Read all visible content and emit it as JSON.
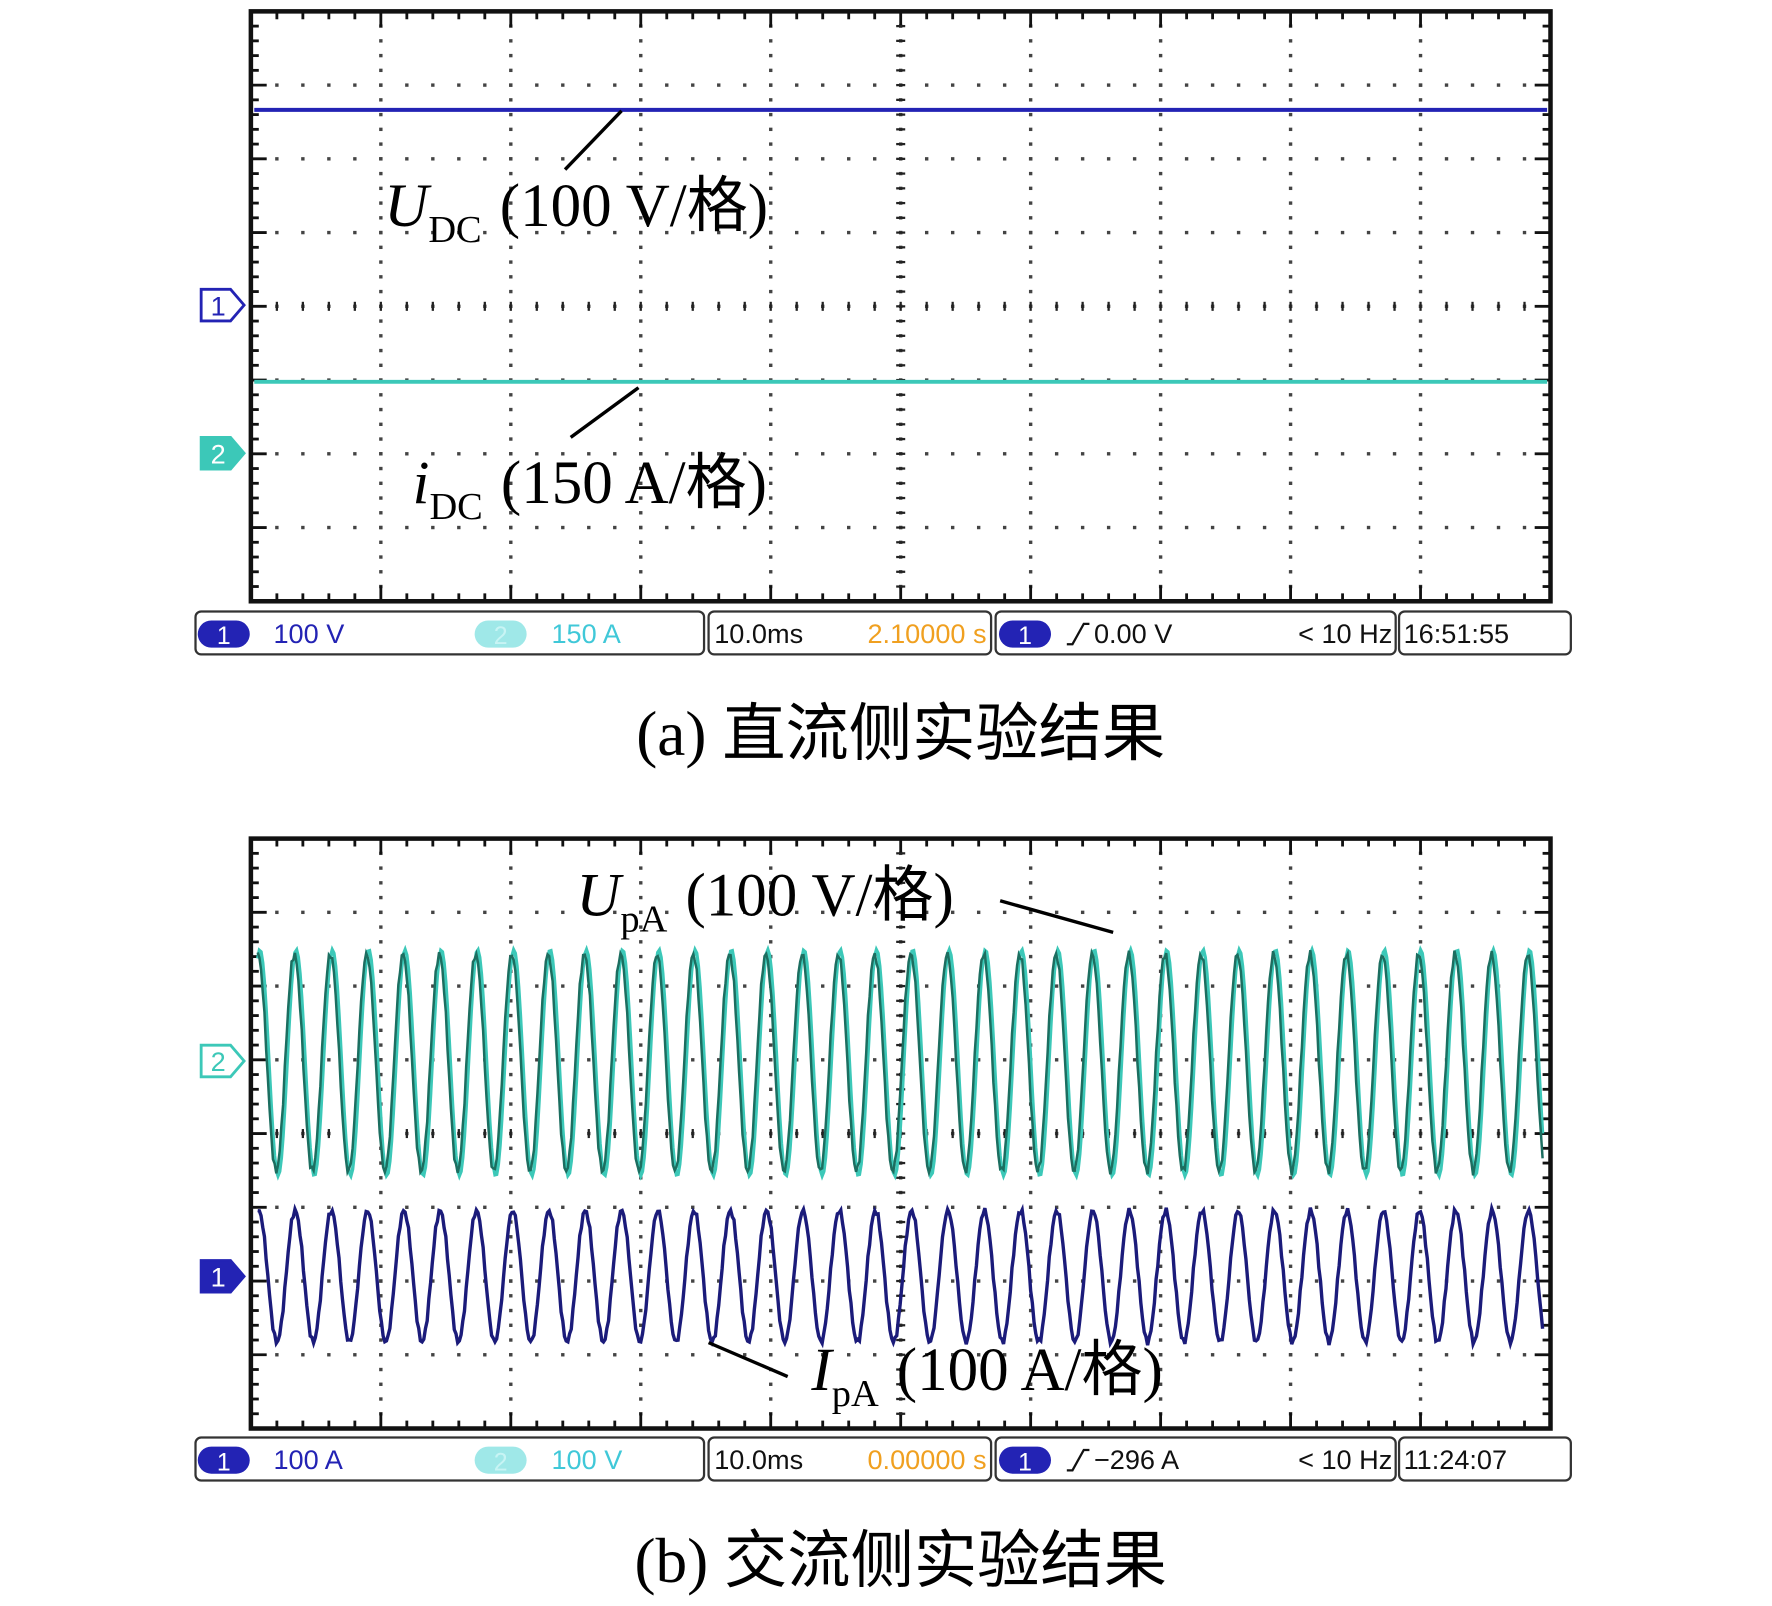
{
  "panels": [
    {
      "annotations": [
        {
          "symbol": "U",
          "subscript": "DC",
          "scale": "(100 V/格)"
        },
        {
          "symbol": "i",
          "subscript": "DC",
          "scale": "(150 A/格)"
        }
      ],
      "markers": [
        "1",
        "2"
      ],
      "status": {
        "ch1": "1",
        "ch1_scale": "100 V",
        "ch2": "2",
        "ch2_scale": "150 A",
        "timebase": "10.0ms",
        "delay": "2.10000 s",
        "trigger_ch": "1",
        "trigger_level": "0.00 V",
        "trigger_freq": "< 10 Hz",
        "clock": "16:51:55"
      },
      "caption": "(a) 直流侧实验结果"
    },
    {
      "annotations": [
        {
          "symbol": "U",
          "subscript": "pA",
          "scale": "(100 V/格)"
        },
        {
          "symbol": "I",
          "subscript": "pA",
          "scale": "(100 A/格)"
        }
      ],
      "markers": [
        "2",
        "1"
      ],
      "status": {
        "ch1": "1",
        "ch1_scale": "100 A",
        "ch2": "2",
        "ch2_scale": "100 V",
        "timebase": "10.0ms",
        "delay": "0.00000 s",
        "trigger_ch": "1",
        "trigger_level": "−296 A",
        "trigger_freq": "< 10 Hz",
        "clock": "11:24:07"
      },
      "caption": "(b) 交流侧实验结果"
    }
  ]
}
